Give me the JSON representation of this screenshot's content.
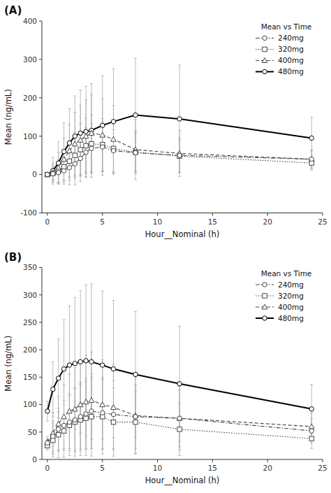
{
  "chart_data": [
    {
      "type": "line",
      "title": "(A)",
      "x_label": "Hour__Nominal (h)",
      "y_label": "Mean (ng/mL)",
      "legend_title": "Mean vs Time",
      "legend": "upper right",
      "grid": false,
      "xlim": [
        -0.5,
        25
      ],
      "ylim": [
        -100,
        400
      ],
      "xticks": [
        0,
        5,
        10,
        15,
        20,
        25
      ],
      "yticks": [
        -100,
        0,
        100,
        200,
        300,
        400
      ],
      "x": [
        0,
        0.5,
        1,
        1.5,
        2,
        2.5,
        3,
        3.5,
        4,
        5,
        6,
        8,
        12,
        24
      ],
      "series": [
        {
          "name": "240mg",
          "color": "#444444",
          "marker": "circle",
          "line_style": "dashdot",
          "values": [
            0,
            2,
            5,
            10,
            18,
            28,
            42,
            58,
            68,
            72,
            62,
            57,
            50,
            40
          ],
          "yerr": [
            1,
            15,
            25,
            35,
            45,
            55,
            60,
            65,
            65,
            65,
            55,
            50,
            45,
            25
          ]
        },
        {
          "name": "320mg",
          "color": "#444444",
          "marker": "square",
          "line_style": "dotted",
          "values": [
            0,
            3,
            8,
            20,
            35,
            50,
            65,
            75,
            80,
            78,
            68,
            58,
            48,
            30
          ],
          "yerr": [
            1,
            20,
            30,
            40,
            50,
            60,
            68,
            72,
            75,
            68,
            62,
            55,
            42,
            18
          ]
        },
        {
          "name": "400mg",
          "color": "#444444",
          "marker": "triangle",
          "line_style": "dashed",
          "values": [
            0,
            5,
            18,
            40,
            62,
            80,
            90,
            100,
            108,
            103,
            92,
            65,
            55,
            40
          ],
          "yerr": [
            1,
            25,
            40,
            55,
            68,
            82,
            90,
            95,
            100,
            95,
            88,
            78,
            60,
            22
          ]
        },
        {
          "name": "480mg",
          "color": "#000000",
          "marker": "circle",
          "line_style": "solid",
          "values": [
            0,
            10,
            30,
            60,
            82,
            100,
            108,
            112,
            115,
            128,
            138,
            155,
            145,
            95
          ],
          "yerr": [
            1,
            35,
            55,
            75,
            90,
            105,
            112,
            118,
            122,
            130,
            138,
            148,
            140,
            55
          ]
        }
      ]
    },
    {
      "type": "line",
      "title": "(B)",
      "x_label": "Hour__Nominal (h)",
      "y_label": "Mean (ng/mL)",
      "legend_title": "Mean vs Time",
      "legend": "upper right",
      "grid": false,
      "xlim": [
        -0.5,
        25
      ],
      "ylim": [
        0,
        350
      ],
      "xticks": [
        0,
        5,
        10,
        15,
        20,
        25
      ],
      "yticks": [
        0,
        50,
        100,
        150,
        200,
        250,
        300,
        350
      ],
      "x": [
        0,
        0.5,
        1,
        1.5,
        2,
        2.5,
        3,
        3.5,
        4,
        5,
        6,
        8,
        12,
        24
      ],
      "series": [
        {
          "name": "240mg",
          "color": "#444444",
          "marker": "circle",
          "line_style": "dashdot",
          "values": [
            30,
            42,
            55,
            62,
            68,
            72,
            78,
            83,
            88,
            85,
            82,
            78,
            75,
            52
          ],
          "yerr": [
            8,
            28,
            38,
            45,
            52,
            58,
            62,
            65,
            68,
            65,
            62,
            58,
            52,
            22
          ]
        },
        {
          "name": "320mg",
          "color": "#444444",
          "marker": "square",
          "line_style": "dotted",
          "values": [
            25,
            35,
            45,
            52,
            62,
            68,
            72,
            75,
            78,
            78,
            68,
            68,
            55,
            38
          ],
          "yerr": [
            8,
            30,
            42,
            48,
            55,
            62,
            65,
            68,
            72,
            68,
            62,
            58,
            48,
            18
          ]
        },
        {
          "name": "400mg",
          "color": "#444444",
          "marker": "triangle",
          "line_style": "dashed",
          "values": [
            32,
            48,
            65,
            78,
            88,
            92,
            100,
            105,
            108,
            100,
            95,
            80,
            75,
            60
          ],
          "yerr": [
            10,
            38,
            50,
            58,
            68,
            75,
            80,
            85,
            88,
            82,
            78,
            70,
            58,
            25
          ]
        },
        {
          "name": "480mg",
          "color": "#000000",
          "marker": "circle",
          "line_style": "solid",
          "values": [
            88,
            128,
            148,
            165,
            172,
            175,
            178,
            180,
            178,
            172,
            165,
            155,
            138,
            92
          ],
          "yerr": [
            18,
            50,
            72,
            90,
            108,
            120,
            130,
            138,
            142,
            135,
            125,
            115,
            105,
            45
          ]
        }
      ]
    }
  ]
}
